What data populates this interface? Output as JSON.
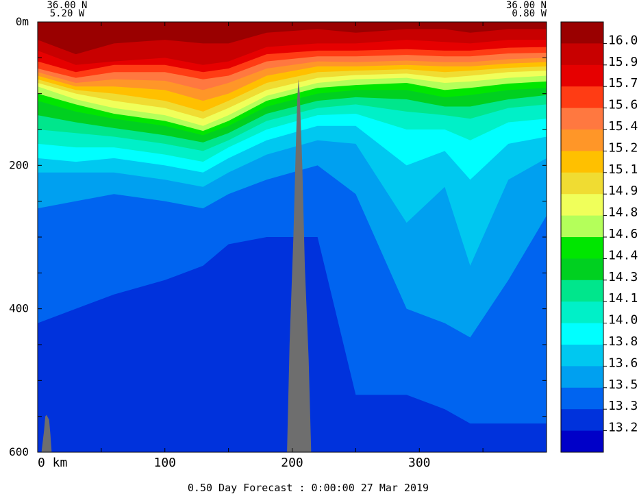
{
  "chart_data": {
    "type": "heatmap",
    "title": "",
    "corner_left": {
      "lat": "36.00 N",
      "lon": "5.20 W"
    },
    "corner_right": {
      "lat": "36.00 N",
      "lon": "0.80 W"
    },
    "xlabel": "",
    "ylabel": "",
    "x_unit": "km",
    "y_unit": "m",
    "xlim": [
      0,
      400
    ],
    "ylim": [
      0,
      600
    ],
    "x_ticks": [
      0,
      100,
      200,
      300
    ],
    "y_ticks": [
      0,
      200,
      400,
      600
    ],
    "y_top_label": "0m",
    "x_first_label": "0  km",
    "footer": "0.50 Day Forecast :  0:00:00  27 Mar 2019",
    "legend": {
      "placement": "right",
      "levels": [
        "16.0",
        "15.9",
        "15.7",
        "15.6",
        "15.4",
        "15.2",
        "15.1",
        "14.9",
        "14.8",
        "14.6",
        "14.4",
        "14.3",
        "14.1",
        "14.0",
        "13.8",
        "13.6",
        "13.5",
        "13.3",
        "13.2"
      ],
      "colors": [
        "#9a0000",
        "#c80000",
        "#e60000",
        "#ff3c14",
        "#ff7840",
        "#ff9628",
        "#ffc000",
        "#f0dc32",
        "#f0ff5a",
        "#b4ff5a",
        "#00e600",
        "#00d020",
        "#00e68c",
        "#00f0c8",
        "#00ffff",
        "#00c8f0",
        "#00a0f0",
        "#0064f0",
        "#0032dc",
        "#0000c8"
      ]
    },
    "profiles": [
      {
        "x": 0,
        "depths": [
          25,
          40,
          55,
          65,
          70,
          75,
          80,
          85,
          90,
          100,
          110,
          130,
          150,
          170,
          190,
          210,
          260,
          420,
          600
        ]
      },
      {
        "x": 30,
        "depths": [
          45,
          60,
          70,
          78,
          85,
          90,
          95,
          100,
          108,
          115,
          125,
          140,
          155,
          175,
          195,
          210,
          250,
          400,
          600
        ]
      },
      {
        "x": 60,
        "depths": [
          30,
          55,
          60,
          70,
          80,
          90,
          100,
          110,
          120,
          128,
          135,
          148,
          160,
          175,
          190,
          210,
          240,
          380,
          600
        ]
      },
      {
        "x": 100,
        "depths": [
          25,
          50,
          60,
          70,
          82,
          95,
          110,
          120,
          130,
          138,
          145,
          158,
          170,
          185,
          200,
          220,
          250,
          360,
          600
        ]
      },
      {
        "x": 130,
        "depths": [
          30,
          60,
          70,
          80,
          95,
          110,
          125,
          135,
          145,
          152,
          158,
          168,
          180,
          195,
          210,
          230,
          260,
          340,
          600
        ]
      },
      {
        "x": 150,
        "depths": [
          30,
          55,
          65,
          75,
          85,
          100,
          110,
          120,
          130,
          138,
          145,
          155,
          165,
          175,
          190,
          210,
          240,
          310,
          600
        ]
      },
      {
        "x": 180,
        "depths": [
          15,
          35,
          45,
          55,
          65,
          75,
          85,
          95,
          103,
          110,
          118,
          128,
          138,
          150,
          165,
          185,
          220,
          300,
          600
        ]
      },
      {
        "x": 220,
        "depths": [
          10,
          30,
          40,
          48,
          55,
          62,
          70,
          78,
          85,
          92,
          100,
          110,
          120,
          130,
          145,
          165,
          200,
          300,
          600
        ]
      },
      {
        "x": 250,
        "depths": [
          15,
          30,
          40,
          48,
          56,
          62,
          68,
          74,
          80,
          88,
          95,
          105,
          115,
          128,
          145,
          170,
          240,
          520,
          600
        ]
      },
      {
        "x": 290,
        "depths": [
          10,
          25,
          38,
          46,
          54,
          60,
          66,
          72,
          78,
          85,
          95,
          108,
          125,
          150,
          200,
          280,
          400,
          520,
          600
        ]
      },
      {
        "x": 320,
        "depths": [
          10,
          28,
          40,
          48,
          56,
          62,
          70,
          78,
          85,
          95,
          105,
          118,
          130,
          150,
          180,
          230,
          420,
          540,
          600
        ]
      },
      {
        "x": 340,
        "depths": [
          15,
          30,
          40,
          48,
          56,
          62,
          68,
          75,
          83,
          92,
          102,
          118,
          135,
          165,
          220,
          340,
          440,
          560,
          600
        ]
      },
      {
        "x": 370,
        "depths": [
          10,
          25,
          36,
          44,
          52,
          58,
          64,
          70,
          78,
          86,
          95,
          108,
          120,
          140,
          170,
          220,
          360,
          560,
          600
        ]
      },
      {
        "x": 400,
        "depths": [
          10,
          25,
          35,
          43,
          50,
          56,
          62,
          68,
          75,
          83,
          92,
          102,
          115,
          135,
          160,
          190,
          270,
          560,
          600
        ]
      }
    ],
    "land_masks": [
      {
        "x": [
          3,
          5,
          6,
          7,
          9,
          10,
          11
        ],
        "depth": [
          600,
          570,
          550,
          548,
          555,
          575,
          600
        ]
      },
      {
        "x": [
          196,
          198,
          201,
          203,
          204,
          205,
          206,
          208,
          210,
          213,
          215
        ],
        "depth": [
          600,
          450,
          300,
          170,
          110,
          80,
          100,
          200,
          340,
          470,
          600
        ]
      }
    ]
  }
}
